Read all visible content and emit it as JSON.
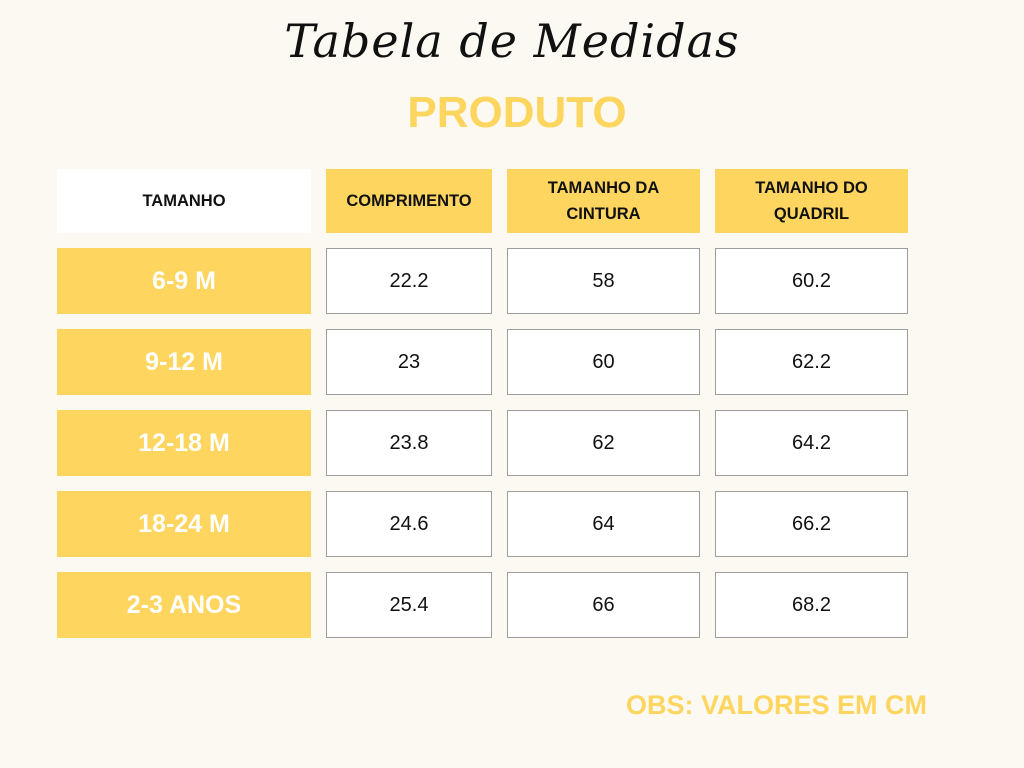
{
  "title": "Tabela de Medidas",
  "subtitle": "PRODUTO",
  "headers": [
    "TAMANHO",
    "COMPRIMENTO",
    "TAMANHO DA\nCINTURA",
    "TAMANHO DO\nQUADRIL"
  ],
  "rows": [
    {
      "size": "6-9 M",
      "comprimento": "22.2",
      "cintura": "58",
      "quadril": "60.2"
    },
    {
      "size": "9-12 M",
      "comprimento": "23",
      "cintura": "60",
      "quadril": "62.2"
    },
    {
      "size": "12-18 M",
      "comprimento": "23.8",
      "cintura": "62",
      "quadril": "64.2"
    },
    {
      "size": "18-24 M",
      "comprimento": "24.6",
      "cintura": "64",
      "quadril": "66.2"
    },
    {
      "size": "2-3 ANOS",
      "comprimento": "25.4",
      "cintura": "66",
      "quadril": "68.2"
    }
  ],
  "note": "OBS: VALORES EM CM",
  "colors": {
    "accent": "#fdd55f",
    "background": "#fbf9f1",
    "border": "#9d9d9d"
  }
}
